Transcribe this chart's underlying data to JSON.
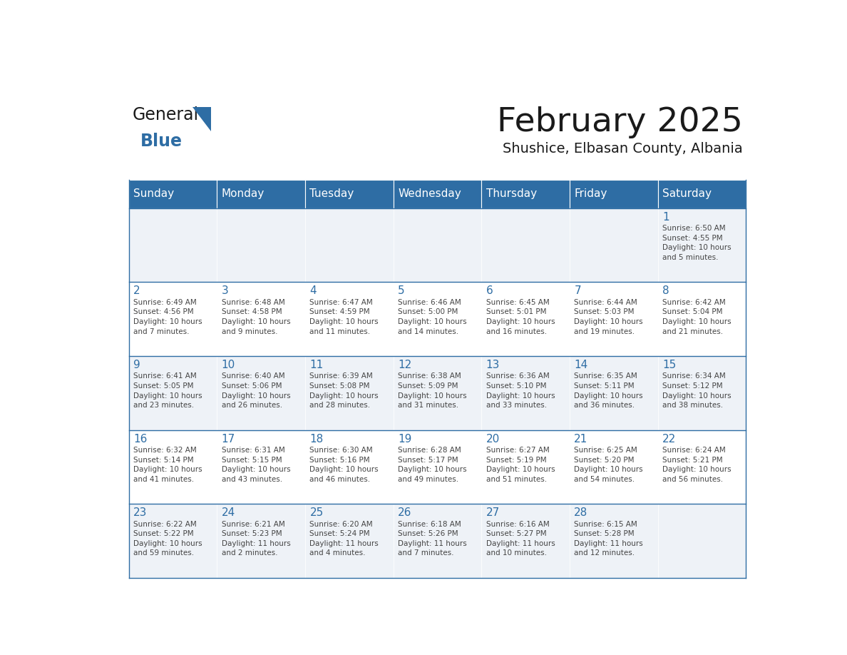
{
  "title": "February 2025",
  "subtitle": "Shushice, Elbasan County, Albania",
  "header_bg": "#2e6da4",
  "header_text": "#ffffff",
  "cell_bg_light": "#eef2f7",
  "cell_bg_white": "#ffffff",
  "day_number_color": "#2e6da4",
  "text_color": "#444444",
  "line_color": "#2e6da4",
  "days_of_week": [
    "Sunday",
    "Monday",
    "Tuesday",
    "Wednesday",
    "Thursday",
    "Friday",
    "Saturday"
  ],
  "weeks": [
    [
      {
        "day": null,
        "info": null
      },
      {
        "day": null,
        "info": null
      },
      {
        "day": null,
        "info": null
      },
      {
        "day": null,
        "info": null
      },
      {
        "day": null,
        "info": null
      },
      {
        "day": null,
        "info": null
      },
      {
        "day": 1,
        "info": "Sunrise: 6:50 AM\nSunset: 4:55 PM\nDaylight: 10 hours\nand 5 minutes."
      }
    ],
    [
      {
        "day": 2,
        "info": "Sunrise: 6:49 AM\nSunset: 4:56 PM\nDaylight: 10 hours\nand 7 minutes."
      },
      {
        "day": 3,
        "info": "Sunrise: 6:48 AM\nSunset: 4:58 PM\nDaylight: 10 hours\nand 9 minutes."
      },
      {
        "day": 4,
        "info": "Sunrise: 6:47 AM\nSunset: 4:59 PM\nDaylight: 10 hours\nand 11 minutes."
      },
      {
        "day": 5,
        "info": "Sunrise: 6:46 AM\nSunset: 5:00 PM\nDaylight: 10 hours\nand 14 minutes."
      },
      {
        "day": 6,
        "info": "Sunrise: 6:45 AM\nSunset: 5:01 PM\nDaylight: 10 hours\nand 16 minutes."
      },
      {
        "day": 7,
        "info": "Sunrise: 6:44 AM\nSunset: 5:03 PM\nDaylight: 10 hours\nand 19 minutes."
      },
      {
        "day": 8,
        "info": "Sunrise: 6:42 AM\nSunset: 5:04 PM\nDaylight: 10 hours\nand 21 minutes."
      }
    ],
    [
      {
        "day": 9,
        "info": "Sunrise: 6:41 AM\nSunset: 5:05 PM\nDaylight: 10 hours\nand 23 minutes."
      },
      {
        "day": 10,
        "info": "Sunrise: 6:40 AM\nSunset: 5:06 PM\nDaylight: 10 hours\nand 26 minutes."
      },
      {
        "day": 11,
        "info": "Sunrise: 6:39 AM\nSunset: 5:08 PM\nDaylight: 10 hours\nand 28 minutes."
      },
      {
        "day": 12,
        "info": "Sunrise: 6:38 AM\nSunset: 5:09 PM\nDaylight: 10 hours\nand 31 minutes."
      },
      {
        "day": 13,
        "info": "Sunrise: 6:36 AM\nSunset: 5:10 PM\nDaylight: 10 hours\nand 33 minutes."
      },
      {
        "day": 14,
        "info": "Sunrise: 6:35 AM\nSunset: 5:11 PM\nDaylight: 10 hours\nand 36 minutes."
      },
      {
        "day": 15,
        "info": "Sunrise: 6:34 AM\nSunset: 5:12 PM\nDaylight: 10 hours\nand 38 minutes."
      }
    ],
    [
      {
        "day": 16,
        "info": "Sunrise: 6:32 AM\nSunset: 5:14 PM\nDaylight: 10 hours\nand 41 minutes."
      },
      {
        "day": 17,
        "info": "Sunrise: 6:31 AM\nSunset: 5:15 PM\nDaylight: 10 hours\nand 43 minutes."
      },
      {
        "day": 18,
        "info": "Sunrise: 6:30 AM\nSunset: 5:16 PM\nDaylight: 10 hours\nand 46 minutes."
      },
      {
        "day": 19,
        "info": "Sunrise: 6:28 AM\nSunset: 5:17 PM\nDaylight: 10 hours\nand 49 minutes."
      },
      {
        "day": 20,
        "info": "Sunrise: 6:27 AM\nSunset: 5:19 PM\nDaylight: 10 hours\nand 51 minutes."
      },
      {
        "day": 21,
        "info": "Sunrise: 6:25 AM\nSunset: 5:20 PM\nDaylight: 10 hours\nand 54 minutes."
      },
      {
        "day": 22,
        "info": "Sunrise: 6:24 AM\nSunset: 5:21 PM\nDaylight: 10 hours\nand 56 minutes."
      }
    ],
    [
      {
        "day": 23,
        "info": "Sunrise: 6:22 AM\nSunset: 5:22 PM\nDaylight: 10 hours\nand 59 minutes."
      },
      {
        "day": 24,
        "info": "Sunrise: 6:21 AM\nSunset: 5:23 PM\nDaylight: 11 hours\nand 2 minutes."
      },
      {
        "day": 25,
        "info": "Sunrise: 6:20 AM\nSunset: 5:24 PM\nDaylight: 11 hours\nand 4 minutes."
      },
      {
        "day": 26,
        "info": "Sunrise: 6:18 AM\nSunset: 5:26 PM\nDaylight: 11 hours\nand 7 minutes."
      },
      {
        "day": 27,
        "info": "Sunrise: 6:16 AM\nSunset: 5:27 PM\nDaylight: 11 hours\nand 10 minutes."
      },
      {
        "day": 28,
        "info": "Sunrise: 6:15 AM\nSunset: 5:28 PM\nDaylight: 11 hours\nand 12 minutes."
      },
      {
        "day": null,
        "info": null
      }
    ]
  ],
  "logo_text_general": "General",
  "logo_text_blue": "Blue",
  "logo_color_general": "#1a1a1a",
  "logo_color_blue": "#2e6da4",
  "logo_triangle_color": "#2e6da4"
}
